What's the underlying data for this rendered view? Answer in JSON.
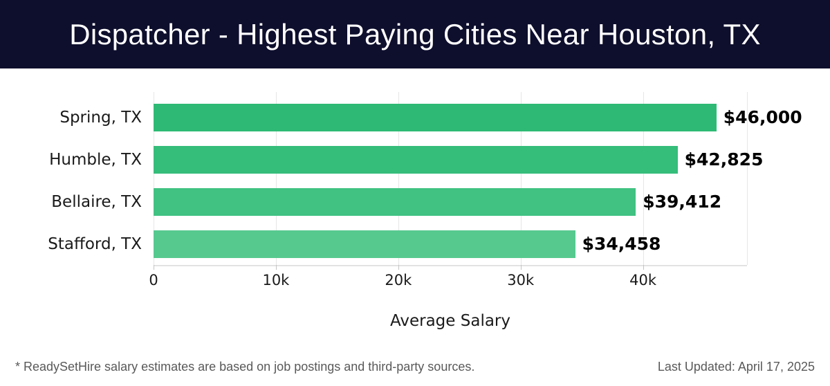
{
  "colors": {
    "header_bg": "#0e0e2d",
    "header_text": "#ffffff",
    "grid": "#e6e6e6",
    "axis_line": "#e2e2e2",
    "tick": "#c4c4c4",
    "label_text": "#1a1a1a",
    "value_text": "#000000",
    "footer_text": "#595959",
    "bar_colors": [
      "#2eba74",
      "#35bd7a",
      "#41c282",
      "#56c98f"
    ]
  },
  "header": {
    "title": "Dispatcher - Highest Paying Cities Near Houston, TX"
  },
  "chart_data": {
    "type": "bar",
    "orientation": "horizontal",
    "title": "Dispatcher - Highest Paying Cities Near Houston, TX",
    "categories": [
      "Spring, TX",
      "Humble, TX",
      "Bellaire, TX",
      "Stafford, TX"
    ],
    "values": [
      46000,
      42825,
      39412,
      34458
    ],
    "value_labels": [
      "$46,000",
      "$42,825",
      "$39,412",
      "$34,458"
    ],
    "xlabel": "Average Salary",
    "ylabel": "",
    "xlim": [
      0,
      48500
    ],
    "xticks": [
      0,
      10000,
      20000,
      30000,
      40000
    ],
    "xtick_labels": [
      "0",
      "10k",
      "20k",
      "30k",
      "40k"
    ],
    "grid": true,
    "legend": false
  },
  "footer": {
    "disclaimer": "* ReadySetHire salary estimates are based on job postings and third-party sources.",
    "last_updated": "Last Updated: April 17, 2025"
  }
}
